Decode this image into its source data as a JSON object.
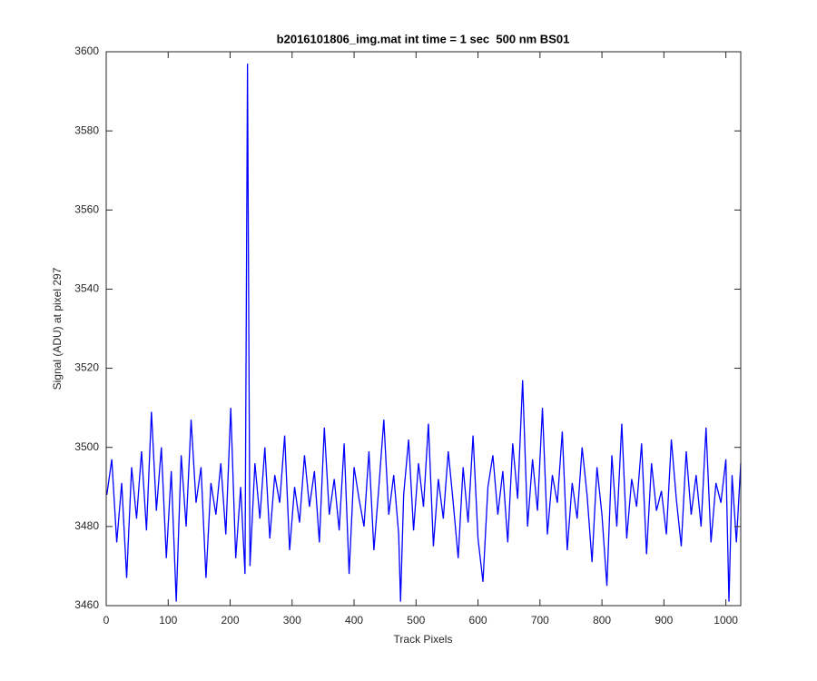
{
  "chart_data": {
    "type": "line",
    "title": "b2016101806_img.mat int time = 1 sec  500 nm BS01",
    "xlabel": "Track Pixels",
    "ylabel": "Signal (ADU) at pixel 297",
    "x": [
      1,
      9,
      17,
      25,
      33,
      41,
      49,
      57,
      65,
      73,
      81,
      89,
      97,
      105,
      113,
      121,
      129,
      137,
      145,
      153,
      161,
      169,
      177,
      185,
      193,
      201,
      209,
      217,
      224,
      228,
      232,
      240,
      248,
      256,
      264,
      272,
      280,
      288,
      296,
      304,
      312,
      320,
      328,
      336,
      344,
      352,
      360,
      368,
      376,
      384,
      392,
      400,
      408,
      416,
      424,
      432,
      440,
      448,
      456,
      464,
      472,
      475,
      480,
      488,
      496,
      504,
      512,
      520,
      528,
      536,
      544,
      552,
      560,
      568,
      576,
      584,
      592,
      600,
      608,
      616,
      624,
      632,
      640,
      648,
      656,
      664,
      672,
      680,
      688,
      696,
      704,
      712,
      720,
      728,
      736,
      744,
      752,
      760,
      768,
      776,
      784,
      792,
      800,
      808,
      816,
      824,
      832,
      840,
      848,
      856,
      864,
      872,
      880,
      888,
      896,
      904,
      912,
      920,
      928,
      936,
      944,
      952,
      960,
      968,
      976,
      984,
      992,
      1000,
      1005,
      1010,
      1017,
      1024
    ],
    "series": [
      {
        "color": "#0000ff",
        "values": [
          3488,
          3497,
          3476,
          3491,
          3467,
          3495,
          3482,
          3499,
          3479,
          3509,
          3484,
          3500,
          3472,
          3494,
          3461,
          3498,
          3480,
          3507,
          3486,
          3495,
          3467,
          3491,
          3483,
          3496,
          3478,
          3510,
          3472,
          3490,
          3468,
          3597,
          3470,
          3496,
          3482,
          3500,
          3477,
          3493,
          3486,
          3503,
          3474,
          3490,
          3481,
          3498,
          3485,
          3494,
          3476,
          3505,
          3483,
          3492,
          3479,
          3501,
          3468,
          3495,
          3487,
          3480,
          3499,
          3474,
          3490,
          3507,
          3483,
          3493,
          3478,
          3461,
          3488,
          3502,
          3479,
          3496,
          3485,
          3506,
          3475,
          3492,
          3482,
          3499,
          3486,
          3472,
          3495,
          3481,
          3503,
          3477,
          3466,
          3490,
          3498,
          3483,
          3494,
          3476,
          3501,
          3487,
          3517,
          3480,
          3497,
          3484,
          3510,
          3478,
          3493,
          3486,
          3504,
          3474,
          3491,
          3482,
          3500,
          3488,
          3471,
          3495,
          3483,
          3465,
          3498,
          3480,
          3506,
          3477,
          3492,
          3485,
          3501,
          3473,
          3496,
          3484,
          3489,
          3478,
          3502,
          3487,
          3475,
          3499,
          3483,
          3493,
          3480,
          3505,
          3476,
          3491,
          3486,
          3497,
          3461,
          3493,
          3476,
          3496
        ]
      }
    ],
    "xlim": [
      0,
      1024
    ],
    "ylim": [
      3460,
      3600
    ],
    "xticks": [
      0,
      100,
      200,
      300,
      400,
      500,
      600,
      700,
      800,
      900,
      1000
    ],
    "yticks": [
      3460,
      3480,
      3500,
      3520,
      3540,
      3560,
      3580,
      3600
    ]
  }
}
